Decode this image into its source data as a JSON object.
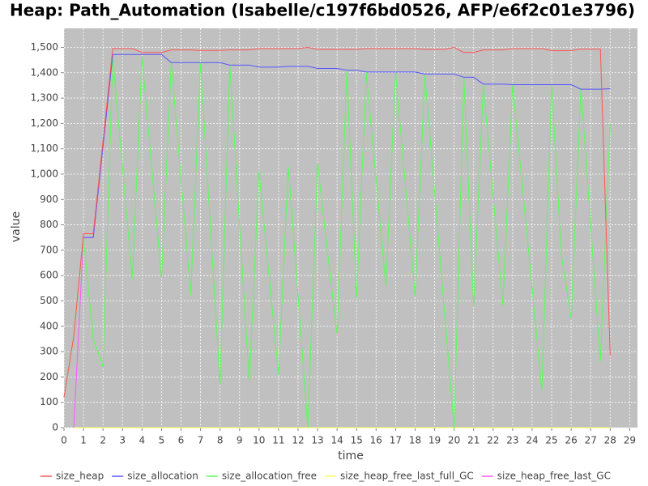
{
  "chart_data": {
    "type": "line",
    "title": "Heap: Path_Automation (Isabelle/c197f6bd0526, AFP/e6f2c01e3796)",
    "x_label": "time",
    "y_label": "value",
    "x": [
      0,
      0.5,
      1,
      1.5,
      2,
      2.5,
      3,
      3.5,
      4,
      4.5,
      5,
      5.5,
      6,
      6.5,
      7,
      7.5,
      8,
      8.5,
      9,
      9.5,
      10,
      10.5,
      11,
      11.5,
      12,
      12.5,
      13,
      13.5,
      14,
      14.5,
      15,
      15.5,
      16,
      16.5,
      17,
      17.5,
      18,
      18.5,
      19,
      19.5,
      20,
      20.5,
      21,
      21.5,
      22,
      22.5,
      23,
      23.5,
      24,
      24.5,
      25,
      25.5,
      26,
      26.5,
      27,
      27.5,
      28
    ],
    "series": [
      {
        "name": "size_heap",
        "color": "#ff5555",
        "values": [
          120,
          360,
          765,
          765,
          1130,
          1495,
          1495,
          1495,
          1480,
          1480,
          1480,
          1490,
          1490,
          1490,
          1488,
          1488,
          1488,
          1490,
          1490,
          1490,
          1495,
          1495,
          1495,
          1495,
          1495,
          1500,
          1492,
          1492,
          1492,
          1492,
          1492,
          1495,
          1495,
          1495,
          1495,
          1495,
          1495,
          1492,
          1492,
          1492,
          1500,
          1480,
          1480,
          1490,
          1490,
          1490,
          1495,
          1495,
          1495,
          1495,
          1487,
          1487,
          1487,
          1493,
          1493,
          1493,
          285
        ]
      },
      {
        "name": "size_allocation",
        "color": "#5555ff",
        "values": [
          null,
          null,
          750,
          750,
          1110,
          1472,
          1472,
          1472,
          1472,
          1472,
          1472,
          1440,
          1440,
          1440,
          1440,
          1440,
          1440,
          1430,
          1430,
          1430,
          1422,
          1422,
          1422,
          1425,
          1425,
          1425,
          1417,
          1417,
          1417,
          1410,
          1410,
          1403,
          1403,
          1403,
          1403,
          1403,
          1403,
          1395,
          1395,
          1395,
          1395,
          1382,
          1382,
          1355,
          1355,
          1355,
          1353,
          1353,
          1353,
          1353,
          1353,
          1353,
          1353,
          1335,
          1335,
          1335,
          1337
        ]
      },
      {
        "name": "size_allocation_free",
        "color": "#55ff55",
        "values": [
          120,
          360,
          750,
          350,
          240,
          1460,
          1025,
          590,
          1460,
          1025,
          590,
          1440,
          980,
          525,
          1440,
          800,
          170,
          1430,
          800,
          180,
          1010,
          610,
          210,
          1030,
          520,
          0,
          1040,
          700,
          370,
          1410,
          510,
          1400,
          980,
          560,
          1400,
          960,
          520,
          1390,
          930,
          460,
          0,
          1380,
          480,
          1350,
          915,
          480,
          1350,
          950,
          550,
          145,
          1350,
          680,
          430,
          1340,
          800,
          260,
          1200
        ]
      },
      {
        "name": "size_heap_free_last_full_GC",
        "color": "#ffff55",
        "values": [
          null,
          0,
          0,
          0,
          0,
          0,
          0,
          0,
          0,
          0,
          0,
          0,
          0,
          0,
          0,
          0,
          0,
          0,
          0,
          0,
          0,
          0,
          0,
          0,
          0,
          0,
          0,
          0,
          0,
          0,
          0,
          0,
          0,
          0,
          0,
          0,
          0,
          0,
          0,
          0,
          0,
          0,
          0,
          0,
          0,
          0,
          0,
          0,
          0,
          0,
          0,
          0,
          0,
          0,
          0,
          0,
          0
        ]
      },
      {
        "name": "size_heap_free_last_GC",
        "color": "#ff55ff",
        "values": [
          null,
          0,
          750,
          750,
          1110,
          1472,
          null,
          null,
          null,
          null,
          null,
          null,
          null,
          null,
          null,
          null,
          null,
          null,
          null,
          null,
          null,
          null,
          null,
          null,
          null,
          null,
          null,
          null,
          null,
          null,
          null,
          null,
          null,
          null,
          null,
          null,
          null,
          null,
          null,
          null,
          null,
          null,
          null,
          null,
          null,
          null,
          null,
          null,
          null,
          null,
          null,
          null,
          null,
          null,
          null,
          null,
          null
        ]
      }
    ],
    "xlim": [
      0,
      29.4
    ],
    "ylim": [
      0,
      1575
    ],
    "xticks": [
      0,
      1,
      2,
      3,
      4,
      5,
      6,
      7,
      8,
      9,
      10,
      11,
      12,
      13,
      14,
      15,
      16,
      17,
      18,
      19,
      20,
      21,
      22,
      23,
      24,
      25,
      26,
      27,
      28,
      29
    ],
    "yticks": [
      0,
      100,
      200,
      300,
      400,
      500,
      600,
      700,
      800,
      900,
      {
        "value": 1000,
        "label": "1,000"
      },
      {
        "value": 1100,
        "label": "1,100"
      },
      {
        "value": 1200,
        "label": "1,200"
      },
      {
        "value": 1300,
        "label": "1,300"
      },
      {
        "value": 1400,
        "label": "1,400"
      },
      {
        "value": 1500,
        "label": "1,500"
      }
    ],
    "grid": true,
    "legend": "bottom"
  }
}
